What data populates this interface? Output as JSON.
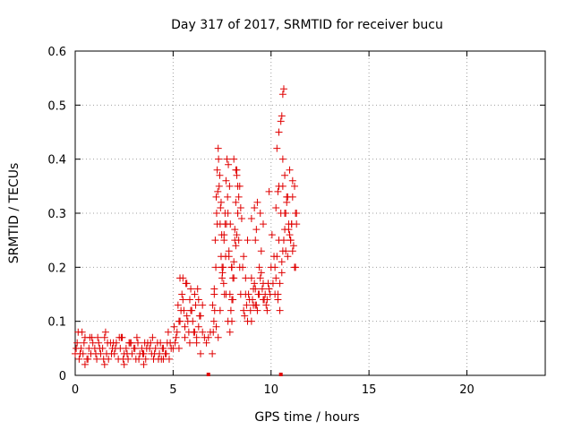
{
  "chart_data": {
    "type": "scatter",
    "title": "Day 317 of 2017, SRMTID for receiver bucu",
    "xlabel": "GPS time / hours",
    "ylabel": "SRMTID / TECUs",
    "xlim": [
      0,
      24
    ],
    "ylim": [
      0,
      0.6
    ],
    "xticks": [
      "0",
      "5",
      "10",
      "15",
      "20"
    ],
    "yticks": [
      "0",
      "0.1",
      "0.2",
      "0.3",
      "0.4",
      "0.5",
      "0.6"
    ],
    "grid": true,
    "marker": "+",
    "color": "#e00000",
    "series": [
      {
        "name": "SRMTID",
        "x": [
          0.0,
          0.1,
          0.2,
          0.3,
          0.4,
          0.5,
          0.6,
          0.7,
          0.8,
          0.9,
          1.0,
          1.1,
          1.2,
          1.3,
          1.4,
          1.5,
          1.6,
          1.7,
          1.8,
          1.9,
          2.0,
          2.1,
          2.2,
          2.3,
          2.4,
          2.5,
          2.6,
          2.7,
          2.8,
          2.9,
          3.0,
          3.1,
          3.2,
          3.3,
          3.4,
          3.5,
          3.6,
          3.7,
          3.8,
          3.9,
          4.0,
          4.1,
          4.2,
          4.3,
          4.4,
          4.5,
          4.6,
          4.7,
          4.8,
          4.9,
          0.05,
          0.25,
          0.45,
          0.65,
          0.85,
          1.05,
          1.25,
          1.45,
          1.65,
          1.85,
          2.05,
          2.25,
          2.45,
          2.65,
          2.85,
          3.05,
          3.25,
          3.45,
          3.65,
          3.85,
          4.05,
          4.25,
          4.45,
          4.65,
          4.85,
          0.15,
          0.35,
          0.75,
          1.15,
          1.55,
          1.95,
          2.35,
          2.75,
          3.15,
          3.55,
          3.95,
          4.35,
          4.75,
          0.5,
          1.5,
          2.5,
          3.5,
          4.5,
          5.0,
          5.1,
          5.2,
          5.3,
          5.4,
          5.5,
          5.6,
          5.7,
          5.8,
          5.9,
          6.0,
          6.1,
          6.2,
          6.3,
          6.4,
          6.5,
          6.6,
          6.7,
          6.8,
          6.9,
          5.05,
          5.15,
          5.25,
          5.35,
          5.45,
          5.55,
          5.65,
          5.75,
          5.85,
          5.95,
          6.05,
          6.15,
          6.25,
          6.35,
          5.3,
          5.5,
          5.7,
          5.9,
          6.1,
          6.3,
          6.5,
          5.35,
          5.6,
          5.85,
          6.2,
          6.4,
          7.0,
          7.05,
          7.1,
          7.15,
          7.2,
          7.25,
          7.3,
          7.35,
          7.4,
          7.45,
          7.5,
          7.55,
          7.6,
          7.65,
          7.7,
          7.75,
          7.8,
          7.85,
          7.9,
          7.95,
          8.0,
          8.05,
          8.1,
          8.15,
          8.2,
          8.25,
          8.3,
          8.35,
          8.4,
          8.45,
          7.02,
          7.08,
          7.12,
          7.18,
          7.22,
          7.28,
          7.32,
          7.38,
          7.42,
          7.48,
          7.52,
          7.58,
          7.62,
          7.68,
          7.72,
          7.78,
          7.82,
          7.88,
          7.92,
          7.98,
          7.1,
          7.2,
          7.3,
          7.4,
          7.5,
          7.6,
          7.7,
          7.8,
          7.9,
          8.0,
          8.1,
          8.2,
          8.3,
          8.4,
          7.25,
          7.45,
          7.65,
          7.85,
          8.05,
          8.25,
          8.0,
          8.1,
          8.2,
          8.3,
          8.35,
          8.45,
          8.15,
          8.25,
          8.5,
          8.6,
          8.7,
          8.8,
          8.9,
          9.0,
          9.1,
          9.2,
          9.3,
          9.4,
          9.5,
          9.6,
          9.7,
          9.8,
          9.9,
          8.55,
          8.65,
          8.75,
          8.85,
          8.95,
          9.05,
          9.15,
          9.25,
          9.35,
          9.45,
          9.55,
          9.65,
          9.75,
          9.85,
          9.95,
          8.6,
          8.8,
          9.0,
          9.2,
          9.4,
          9.6,
          9.8,
          8.7,
          9.1,
          9.5,
          9.9,
          9.3,
          9.45,
          9.6,
          9.0,
          9.15,
          9.2,
          9.25,
          10.0,
          10.1,
          10.2,
          10.3,
          10.4,
          10.5,
          10.6,
          10.7,
          10.8,
          10.9,
          11.0,
          11.1,
          11.2,
          11.3,
          10.05,
          10.15,
          10.25,
          10.35,
          10.45,
          10.55,
          10.65,
          10.75,
          10.85,
          10.95,
          11.05,
          11.15,
          11.25,
          10.3,
          10.4,
          10.6,
          10.7,
          10.9,
          11.0,
          11.1,
          11.2,
          11.3,
          10.2,
          10.35,
          10.45,
          10.55,
          10.75,
          10.85,
          10.95,
          11.05,
          11.25,
          10.4,
          10.5,
          10.6,
          10.65,
          10.55,
          10.6,
          10.7,
          10.25,
          10.35,
          10.8,
          11.1
        ],
        "y": [
          0.04,
          0.06,
          0.03,
          0.05,
          0.04,
          0.07,
          0.03,
          0.05,
          0.04,
          0.06,
          0.05,
          0.03,
          0.06,
          0.04,
          0.05,
          0.07,
          0.04,
          0.03,
          0.06,
          0.05,
          0.04,
          0.06,
          0.03,
          0.05,
          0.07,
          0.04,
          0.05,
          0.03,
          0.06,
          0.04,
          0.05,
          0.03,
          0.06,
          0.04,
          0.05,
          0.04,
          0.03,
          0.06,
          0.05,
          0.04,
          0.03,
          0.05,
          0.06,
          0.04,
          0.03,
          0.05,
          0.04,
          0.06,
          0.03,
          0.05,
          0.05,
          0.04,
          0.06,
          0.03,
          0.07,
          0.04,
          0.05,
          0.03,
          0.06,
          0.04,
          0.05,
          0.07,
          0.03,
          0.04,
          0.06,
          0.05,
          0.03,
          0.04,
          0.05,
          0.06,
          0.04,
          0.03,
          0.05,
          0.04,
          0.06,
          0.08,
          0.08,
          0.07,
          0.07,
          0.08,
          0.06,
          0.07,
          0.06,
          0.07,
          0.06,
          0.07,
          0.06,
          0.08,
          0.02,
          0.02,
          0.02,
          0.02,
          0.03,
          0.05,
          0.06,
          0.08,
          0.1,
          0.12,
          0.14,
          0.09,
          0.11,
          0.08,
          0.12,
          0.1,
          0.08,
          0.07,
          0.09,
          0.11,
          0.08,
          0.07,
          0.06,
          0.07,
          0.08,
          0.09,
          0.07,
          0.13,
          0.18,
          0.15,
          0.12,
          0.17,
          0.1,
          0.14,
          0.12,
          0.08,
          0.13,
          0.16,
          0.11,
          0.05,
          0.18,
          0.17,
          0.16,
          0.15,
          0.14,
          0.13,
          0.1,
          0.07,
          0.06,
          0.06,
          0.04,
          0.04,
          0.08,
          0.15,
          0.25,
          0.33,
          0.38,
          0.42,
          0.35,
          0.28,
          0.22,
          0.18,
          0.2,
          0.26,
          0.3,
          0.36,
          0.4,
          0.3,
          0.22,
          0.15,
          0.12,
          0.1,
          0.14,
          0.18,
          0.25,
          0.32,
          0.38,
          0.3,
          0.25,
          0.2,
          0.15,
          0.13,
          0.1,
          0.12,
          0.2,
          0.3,
          0.34,
          0.4,
          0.37,
          0.31,
          0.26,
          0.19,
          0.17,
          0.15,
          0.22,
          0.28,
          0.33,
          0.39,
          0.35,
          0.28,
          0.2,
          0.16,
          0.09,
          0.07,
          0.12,
          0.2,
          0.25,
          0.15,
          0.1,
          0.08,
          0.14,
          0.21,
          0.24,
          0.3,
          0.35,
          0.28,
          0.32,
          0.28,
          0.23,
          0.18,
          0.26,
          0.2,
          0.4,
          0.38,
          0.35,
          0.33,
          0.31,
          0.27,
          0.37,
          0.29,
          0.12,
          0.15,
          0.1,
          0.14,
          0.18,
          0.13,
          0.16,
          0.12,
          0.15,
          0.19,
          0.17,
          0.15,
          0.14,
          0.16,
          0.2,
          0.11,
          0.13,
          0.15,
          0.12,
          0.14,
          0.17,
          0.13,
          0.15,
          0.18,
          0.16,
          0.14,
          0.13,
          0.17,
          0.15,
          0.22,
          0.25,
          0.1,
          0.13,
          0.2,
          0.14,
          0.12,
          0.18,
          0.16,
          0.23,
          0.34,
          0.32,
          0.3,
          0.28,
          0.29,
          0.31,
          0.25,
          0.27,
          0.2,
          0.17,
          0.2,
          0.22,
          0.25,
          0.3,
          0.4,
          0.37,
          0.33,
          0.28,
          0.25,
          0.23,
          0.2,
          0.3,
          0.26,
          0.22,
          0.18,
          0.15,
          0.12,
          0.21,
          0.25,
          0.3,
          0.33,
          0.38,
          0.28,
          0.24,
          0.2,
          0.42,
          0.45,
          0.35,
          0.3,
          0.27,
          0.25,
          0.33,
          0.35,
          0.28,
          0.15,
          0.14,
          0.17,
          0.19,
          0.23,
          0.22,
          0.26,
          0.28,
          0.3,
          0.35,
          0.47,
          0.52,
          0.53,
          0.48,
          0.23,
          0.27,
          0.31,
          0.34,
          0.32,
          0.36
        ]
      }
    ],
    "zero_samples_x": [
      6.8,
      10.5
    ]
  }
}
